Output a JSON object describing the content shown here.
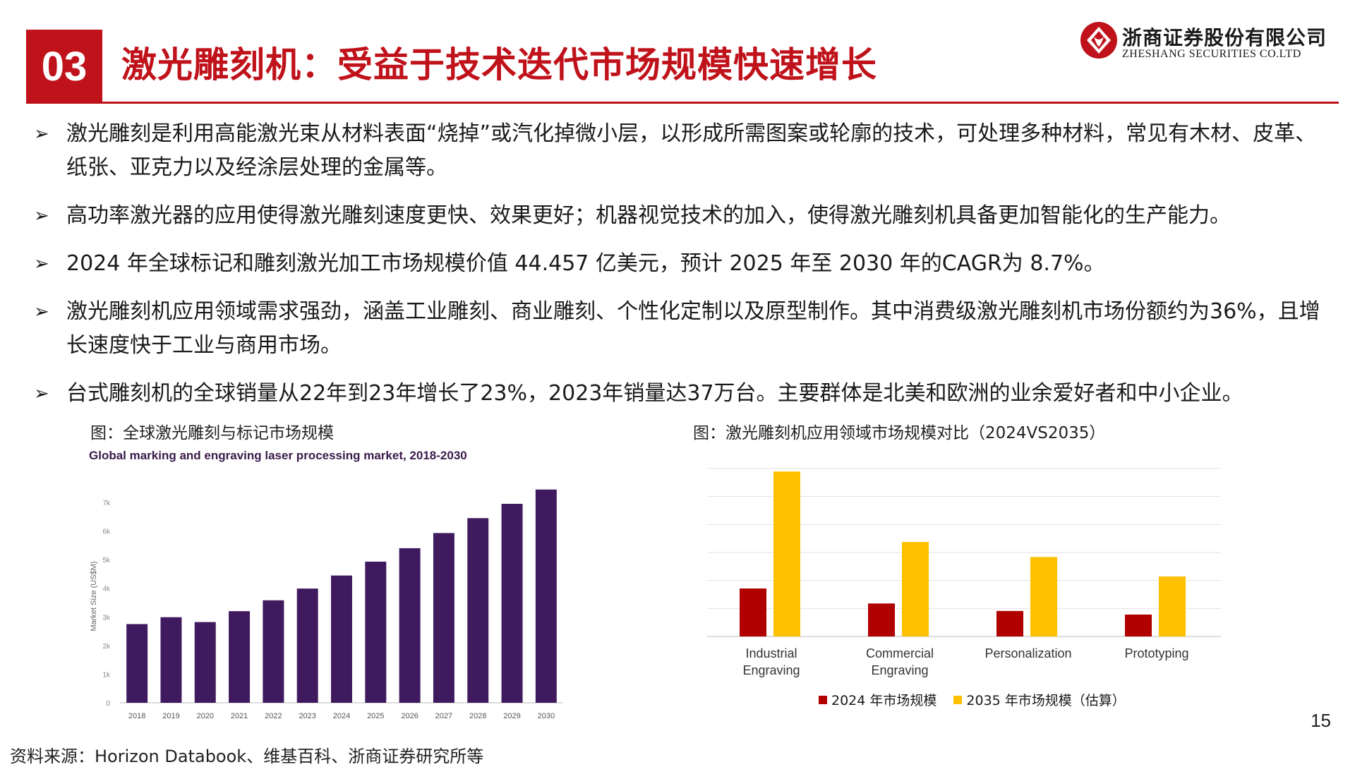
{
  "header": {
    "section_number": "03",
    "title": "激光雕刻机：受益于技术迭代市场规模快速增长",
    "logo_cn": "浙商证券股份有限公司",
    "logo_en": "ZHESHANG SECURITIES CO.LTD",
    "accent_color": "#c0121b"
  },
  "bullets": [
    {
      "text": "激光雕刻是利用高能激光束从材料表面“烧掉”或汽化掉微小层，以形成所需图案或轮廓的技术，可处理多种材料，常见有木材、皮革、纸张、亚克力以及经涂层处理的金属等。"
    },
    {
      "text": "高功率激光器的应用使得激光雕刻速度更快、效果更好；机器视觉技术的加入，使得激光雕刻机具备更加智能化的生产能力。"
    },
    {
      "text": "2024 年全球标记和雕刻激光加工市场规模价值 44.457 亿美元，预计 2025 年至 2030 年的CAGR为 8.7%。"
    },
    {
      "text": "激光雕刻机应用领域需求强劲，涵盖工业雕刻、商业雕刻、个性化定制以及原型制作。其中消费级激光雕刻机市场份额约为36%，且增长速度快于工业与商用市场。"
    },
    {
      "text": "台式雕刻机的全球销量从22年到23年增长了23%，2023年销量达37万台。主要群体是北美和欧洲的业余爱好者和中小企业。"
    }
  ],
  "chart1_caption": "图：全球激光雕刻与标记市场规模",
  "chart2_caption": "图：激光雕刻机应用领域市场规模对比（2024VS2035）",
  "chart_data": [
    {
      "type": "bar",
      "title": "Global marking and engraving laser processing market, 2018-2030",
      "ylabel": "Market Size (US$M)",
      "xlabel": "",
      "categories": [
        "2018",
        "2019",
        "2020",
        "2021",
        "2022",
        "2023",
        "2024",
        "2025",
        "2026",
        "2027",
        "2028",
        "2029",
        "2030"
      ],
      "values": [
        2750,
        2990,
        2820,
        3200,
        3580,
        3990,
        4446,
        4930,
        5400,
        5930,
        6450,
        6950,
        7450
      ],
      "ylim": [
        0,
        7000
      ],
      "yticks": [
        "0",
        "1k",
        "2k",
        "3k",
        "4k",
        "5k",
        "6k",
        "7k"
      ],
      "bar_color": "#3f1a5e",
      "grid": false
    },
    {
      "type": "bar",
      "title": "",
      "categories": [
        "Industrial Engraving",
        "Commercial Engraving",
        "Personalization",
        "Prototyping"
      ],
      "series": [
        {
          "name": "2024 年市场规模",
          "values": [
            1.6,
            1.1,
            0.85,
            0.73
          ],
          "color": "#b10000"
        },
        {
          "name": "2035 年市场规模（估算）",
          "values": [
            5.5,
            3.15,
            2.65,
            2.0
          ],
          "color": "#ffc000"
        }
      ],
      "ylim": [
        0,
        5.6
      ],
      "grid": true,
      "legend": "bottom"
    }
  ],
  "page_number": "15",
  "source": "资料来源：Horizon Databook、维基百科、浙商证券研究所等"
}
